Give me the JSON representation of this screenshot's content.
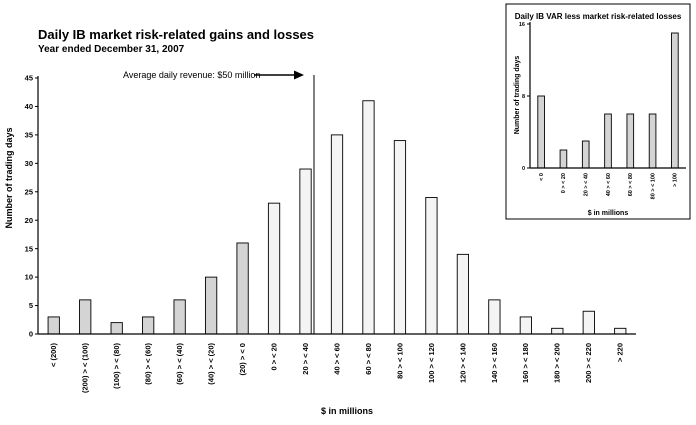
{
  "chart_data": [
    {
      "type": "bar",
      "title": "Daily IB market risk-related gains and losses",
      "subtitle": "Year ended December 31, 2007",
      "xlabel": "$ in millions",
      "ylabel": "Number of trading days",
      "ylim": [
        0,
        45
      ],
      "yticks": [
        0,
        5,
        10,
        15,
        20,
        25,
        30,
        35,
        40,
        45
      ],
      "grid": false,
      "annotation": "Average daily revenue: $50 million",
      "categories": [
        "< (200)",
        "(200) > < (100)",
        "(100) > < (80)",
        "(80) > < (60)",
        "(60) > < (40)",
        "(40) > < (20)",
        "(20) > < 0",
        "0 > < 20",
        "20 > < 40",
        "40 > < 60",
        "60 > < 80",
        "80 > < 100",
        "100 > < 120",
        "120 > < 140",
        "140 > < 160",
        "160 > < 180",
        "180 > < 200",
        "200 > < 220",
        "> 220"
      ],
      "values": [
        3,
        6,
        2,
        3,
        6,
        10,
        16,
        23,
        29,
        35,
        41,
        34,
        24,
        14,
        6,
        3,
        1,
        4,
        1
      ],
      "colors": {
        "loss_bar": "#d4d4d4",
        "gain_bar": "#f4f4f4",
        "stroke": "#000000"
      }
    },
    {
      "type": "bar",
      "title": "Daily IB VAR less market risk-related losses",
      "xlabel": "$ in millions",
      "ylabel": "Number of trading days",
      "ylim": [
        0,
        16
      ],
      "yticks": [
        0,
        8,
        16
      ],
      "grid": false,
      "categories": [
        "< 0",
        "0 > < 20",
        "20 > < 40",
        "40 > < 60",
        "60 > < 80",
        "80 > < 100",
        "> 100"
      ],
      "values": [
        8,
        2,
        3,
        6,
        6,
        6,
        15
      ],
      "colors": {
        "bar": "#d4d4d4",
        "stroke": "#000000"
      }
    }
  ]
}
